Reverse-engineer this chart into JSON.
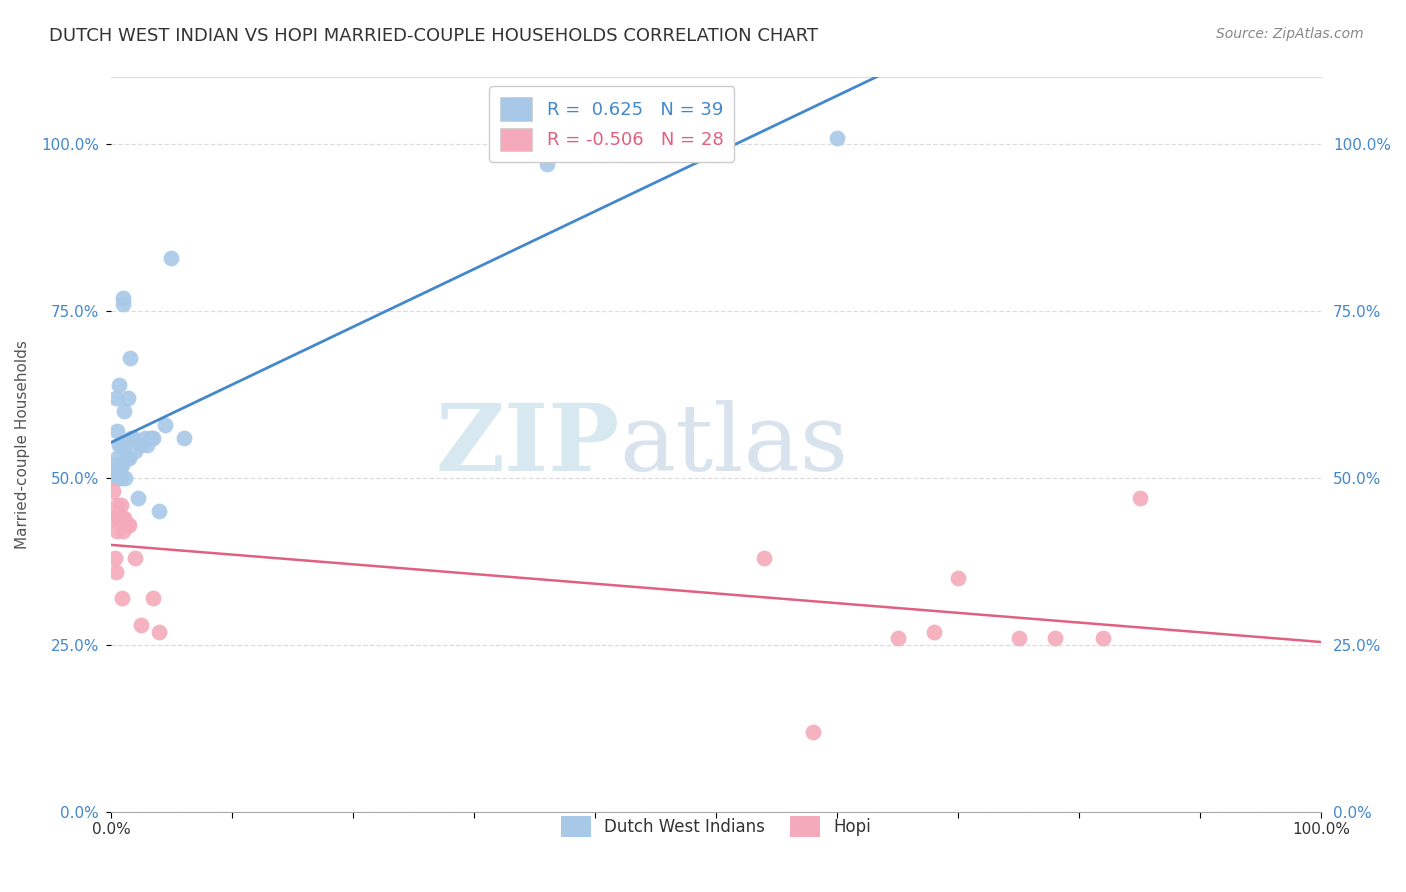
{
  "title": "DUTCH WEST INDIAN VS HOPI MARRIED-COUPLE HOUSEHOLDS CORRELATION CHART",
  "source": "Source: ZipAtlas.com",
  "ylabel": "Married-couple Households",
  "legend_label_blue": "Dutch West Indians",
  "legend_label_pink": "Hopi",
  "R_blue": 0.625,
  "N_blue": 39,
  "R_pink": -0.506,
  "N_pink": 28,
  "blue_color": "#A8C8E8",
  "pink_color": "#F4AABB",
  "trendline_blue": "#4488CC",
  "trendline_pink": "#E06080",
  "blue_x": [
    0.001,
    0.003,
    0.004,
    0.004,
    0.005,
    0.005,
    0.006,
    0.006,
    0.007,
    0.007,
    0.008,
    0.008,
    0.009,
    0.009,
    0.01,
    0.01,
    0.01,
    0.011,
    0.011,
    0.012,
    0.013,
    0.014,
    0.015,
    0.016,
    0.017,
    0.018,
    0.02,
    0.022,
    0.025,
    0.028,
    0.03,
    0.033,
    0.035,
    0.04,
    0.045,
    0.05,
    0.06,
    0.36,
    0.6
  ],
  "blue_y": [
    0.5,
    0.51,
    0.62,
    0.52,
    0.57,
    0.53,
    0.5,
    0.52,
    0.64,
    0.55,
    0.5,
    0.52,
    0.52,
    0.55,
    0.76,
    0.77,
    0.55,
    0.6,
    0.55,
    0.5,
    0.53,
    0.62,
    0.53,
    0.68,
    0.56,
    0.56,
    0.54,
    0.47,
    0.55,
    0.56,
    0.55,
    0.56,
    0.56,
    0.45,
    0.58,
    0.83,
    0.56,
    0.97,
    1.01
  ],
  "pink_x": [
    0.001,
    0.002,
    0.003,
    0.004,
    0.005,
    0.005,
    0.006,
    0.007,
    0.008,
    0.009,
    0.009,
    0.01,
    0.011,
    0.014,
    0.015,
    0.02,
    0.025,
    0.035,
    0.04,
    0.54,
    0.58,
    0.65,
    0.68,
    0.7,
    0.75,
    0.78,
    0.82,
    0.85
  ],
  "pink_y": [
    0.44,
    0.48,
    0.38,
    0.36,
    0.42,
    0.46,
    0.44,
    0.44,
    0.46,
    0.32,
    0.44,
    0.42,
    0.44,
    0.43,
    0.43,
    0.38,
    0.28,
    0.32,
    0.27,
    0.38,
    0.12,
    0.26,
    0.27,
    0.35,
    0.26,
    0.26,
    0.26,
    0.47
  ],
  "xlim": [
    0.0,
    1.0
  ],
  "ylim": [
    0.0,
    1.1
  ],
  "ytick_values": [
    0.0,
    0.25,
    0.5,
    0.75,
    1.0
  ],
  "ytick_labels": [
    "0.0%",
    "25.0%",
    "50.0%",
    "75.0%",
    "100.0%"
  ],
  "xtick_values": [
    0.0,
    0.1,
    0.2,
    0.3,
    0.4,
    0.5,
    0.6,
    0.7,
    0.8,
    0.9,
    1.0
  ],
  "xtick_labels": [
    "0.0%",
    "",
    "",
    "",
    "",
    "",
    "",
    "",
    "",
    "",
    "100.0%"
  ],
  "watermark_zip": "ZIP",
  "watermark_atlas": "atlas",
  "background_color": "#FFFFFF",
  "grid_color": "#DDDDDD",
  "tick_color_y": "#4488CC",
  "title_fontsize": 13,
  "source_fontsize": 10,
  "axis_fontsize": 11
}
